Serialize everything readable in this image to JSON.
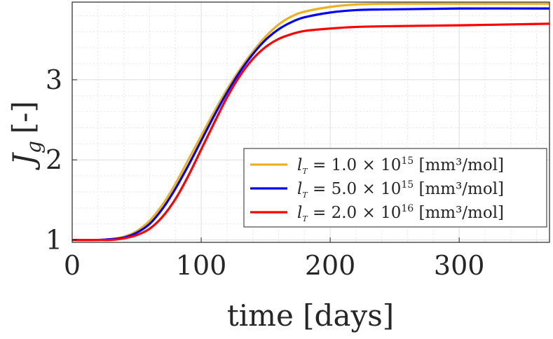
{
  "chart_data": {
    "type": "line",
    "title": "",
    "xlabel": "time [days]",
    "ylabel": "J",
    "ylabel_subscript": "g",
    "ylabel_suffix": "[-]",
    "xlim": [
      0,
      370
    ],
    "ylim": [
      0.97,
      3.97
    ],
    "xticks": [
      0,
      100,
      200,
      300
    ],
    "yticks": [
      1,
      2,
      3
    ],
    "grid": true,
    "minor_grid": true,
    "legend_position": "right",
    "series": [
      {
        "name": "l_T = 1.0 × 10^15 [mm³/mol]",
        "symbol": "l",
        "subscript": "T",
        "equals": "=",
        "mantissa": "1.0",
        "times": "×",
        "base": "10",
        "exponent": "15",
        "units": "[mm³/mol]",
        "color": "#EDB120",
        "x": [
          0,
          20,
          30,
          40,
          50,
          60,
          70,
          80,
          90,
          100,
          110,
          120,
          130,
          140,
          150,
          160,
          170,
          180,
          200,
          220,
          250,
          300,
          370
        ],
        "values": [
          1.0,
          1.0,
          1.01,
          1.04,
          1.11,
          1.24,
          1.44,
          1.7,
          2.0,
          2.3,
          2.6,
          2.88,
          3.13,
          3.35,
          3.54,
          3.69,
          3.79,
          3.85,
          3.91,
          3.94,
          3.95,
          3.95,
          3.95
        ]
      },
      {
        "name": "l_T = 5.0 × 10^15 [mm³/mol]",
        "symbol": "l",
        "subscript": "T",
        "equals": "=",
        "mantissa": "5.0",
        "times": "×",
        "base": "10",
        "exponent": "15",
        "units": "[mm³/mol]",
        "color": "#0000FF",
        "x": [
          0,
          20,
          30,
          40,
          50,
          60,
          70,
          80,
          90,
          100,
          110,
          120,
          130,
          140,
          150,
          160,
          170,
          180,
          200,
          220,
          250,
          300,
          370
        ],
        "values": [
          1.0,
          1.0,
          1.01,
          1.03,
          1.09,
          1.2,
          1.39,
          1.64,
          1.93,
          2.24,
          2.55,
          2.84,
          3.1,
          3.32,
          3.5,
          3.63,
          3.72,
          3.78,
          3.84,
          3.87,
          3.88,
          3.89,
          3.89
        ]
      },
      {
        "name": "l_T = 2.0 × 10^16 [mm³/mol]",
        "symbol": "l",
        "subscript": "T",
        "equals": "=",
        "mantissa": "2.0",
        "times": "×",
        "base": "10",
        "exponent": "16",
        "units": "[mm³/mol]",
        "color": "#FF0000",
        "x": [
          0,
          20,
          30,
          40,
          50,
          60,
          70,
          80,
          90,
          100,
          110,
          120,
          130,
          140,
          150,
          160,
          170,
          180,
          200,
          220,
          250,
          300,
          370
        ],
        "values": [
          1.0,
          1.0,
          1.0,
          1.02,
          1.06,
          1.14,
          1.29,
          1.51,
          1.8,
          2.13,
          2.46,
          2.78,
          3.05,
          3.26,
          3.41,
          3.51,
          3.57,
          3.61,
          3.64,
          3.66,
          3.67,
          3.68,
          3.7
        ]
      }
    ]
  }
}
